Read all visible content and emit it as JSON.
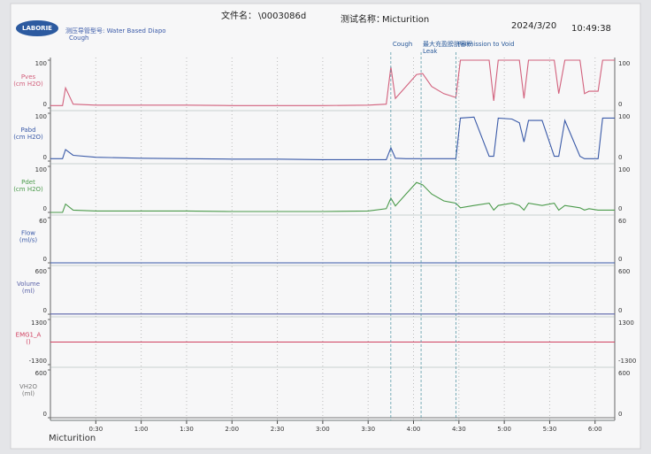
{
  "header": {
    "file_label": "文件名：",
    "file_name": "\\0003086d",
    "test_label": "测试名称：",
    "test_name": "Micturition",
    "date": "2024/3/20",
    "time": "10:49:38",
    "logo": "LABORIE",
    "catheter": "测压导管型号: Water Based Diapo",
    "catheter_note": "Cough"
  },
  "footer_label": "Micturition",
  "events": [
    {
      "x": 225,
      "label": "Cough"
    },
    {
      "x": 245,
      "label": "最大充盈膀胱容积",
      "sublabel": "Leak"
    },
    {
      "x": 268,
      "label": "Permission to Void"
    }
  ],
  "chart_data": [
    {
      "type": "line",
      "title": "Pves",
      "y_label": "(cm H2O)",
      "color": "#d2607c",
      "xlim": [
        0,
        373
      ],
      "ylim": [
        0,
        100
      ],
      "yticks": [
        0,
        100
      ],
      "x": [
        0,
        8,
        10,
        15,
        30,
        60,
        90,
        120,
        150,
        180,
        210,
        222,
        225,
        228,
        235,
        242,
        246,
        252,
        260,
        268,
        271,
        280,
        290,
        293,
        296,
        305,
        310,
        313,
        316,
        325,
        333,
        336,
        340,
        350,
        353,
        356,
        362,
        365,
        373
      ],
      "values": [
        5,
        5,
        42,
        8,
        6,
        6,
        6,
        5,
        5,
        5,
        6,
        8,
        86,
        20,
        45,
        70,
        72,
        45,
        30,
        22,
        100,
        100,
        100,
        15,
        100,
        100,
        100,
        20,
        100,
        100,
        100,
        30,
        100,
        100,
        30,
        35,
        35,
        100,
        100
      ]
    },
    {
      "type": "line",
      "title": "Pabd",
      "y_label": "(cm H2O)",
      "color": "#3a5aa8",
      "xlim": [
        0,
        373
      ],
      "ylim": [
        0,
        100
      ],
      "yticks": [
        0,
        100
      ],
      "x": [
        0,
        8,
        10,
        15,
        30,
        60,
        90,
        120,
        150,
        180,
        210,
        222,
        225,
        228,
        235,
        242,
        246,
        252,
        260,
        268,
        271,
        280,
        290,
        293,
        296,
        305,
        310,
        313,
        316,
        325,
        333,
        336,
        340,
        350,
        353,
        356,
        362,
        365,
        373
      ],
      "values": [
        5,
        5,
        24,
        12,
        8,
        6,
        5,
        4,
        4,
        3,
        3,
        3,
        28,
        6,
        5,
        5,
        5,
        5,
        5,
        5,
        90,
        92,
        10,
        10,
        90,
        88,
        80,
        40,
        85,
        85,
        10,
        10,
        85,
        10,
        5,
        5,
        5,
        90,
        90
      ]
    },
    {
      "type": "line",
      "title": "Pdet",
      "y_label": "(cm H2O)",
      "color": "#4a9a4a",
      "xlim": [
        0,
        373
      ],
      "ylim": [
        0,
        100
      ],
      "yticks": [
        0,
        100
      ],
      "x": [
        0,
        8,
        10,
        15,
        30,
        60,
        90,
        120,
        150,
        180,
        210,
        222,
        225,
        228,
        235,
        242,
        246,
        252,
        260,
        268,
        271,
        280,
        290,
        293,
        296,
        305,
        310,
        313,
        316,
        325,
        333,
        336,
        340,
        350,
        353,
        356,
        362,
        365,
        373
      ],
      "values": [
        0,
        0,
        18,
        5,
        3,
        3,
        3,
        2,
        2,
        2,
        3,
        8,
        31,
        14,
        40,
        65,
        60,
        40,
        25,
        20,
        10,
        15,
        20,
        5,
        15,
        20,
        15,
        5,
        20,
        15,
        20,
        5,
        15,
        10,
        5,
        8,
        5,
        5,
        5
      ]
    },
    {
      "type": "line",
      "title": "Flow",
      "y_label": "(ml/s)",
      "color": "#3a5aa8",
      "xlim": [
        0,
        373
      ],
      "ylim": [
        0,
        60
      ],
      "yticks": [
        0,
        60
      ],
      "x": [
        0,
        373
      ],
      "values": [
        0,
        0
      ]
    },
    {
      "type": "line",
      "title": "Volume",
      "y_label": "(ml)",
      "color": "#5a62a8",
      "xlim": [
        0,
        373
      ],
      "ylim": [
        0,
        600
      ],
      "yticks": [
        0,
        600
      ],
      "x": [
        0,
        373
      ],
      "values": [
        2,
        2
      ]
    },
    {
      "type": "line",
      "title": "EMG1_A",
      "y_label": "()",
      "color": "#d04060",
      "xlim": [
        0,
        373
      ],
      "ylim": [
        -1300,
        1300
      ],
      "yticks": [
        -1300,
        1300
      ],
      "x": [
        0,
        373
      ],
      "values": [
        0,
        0
      ]
    },
    {
      "type": "line",
      "title": "VH2O",
      "y_label": "(ml)",
      "color": "#777777",
      "xlim": [
        0,
        373
      ],
      "ylim": [
        0,
        600
      ],
      "yticks": [
        0,
        600
      ],
      "x": [
        0,
        373
      ],
      "values": [
        0,
        0
      ],
      "xticks": [
        {
          "value": 30,
          "label": "0:30"
        },
        {
          "value": 60,
          "label": "1:00"
        },
        {
          "value": 90,
          "label": "1:30"
        },
        {
          "value": 120,
          "label": "2:00"
        },
        {
          "value": 150,
          "label": "2:30"
        },
        {
          "value": 180,
          "label": "3:00"
        },
        {
          "value": 210,
          "label": "3:30"
        },
        {
          "value": 240,
          "label": "4:00"
        },
        {
          "value": 270,
          "label": "4:30"
        },
        {
          "value": 300,
          "label": "5:00"
        },
        {
          "value": 330,
          "label": "5:30"
        },
        {
          "value": 360,
          "label": "6:00"
        }
      ]
    }
  ]
}
